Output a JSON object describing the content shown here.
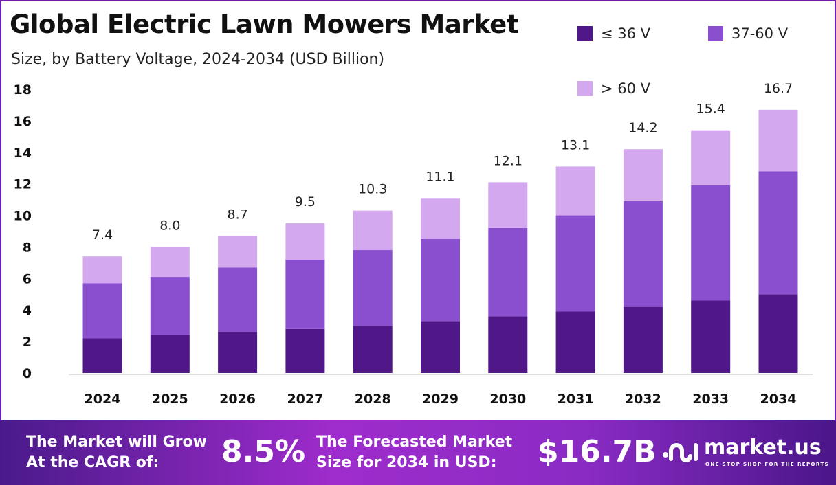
{
  "chart_data": {
    "type": "bar",
    "stacked": true,
    "title": "Global Electric Lawn Mowers Market",
    "subtitle": "Size, by Battery Voltage, 2024-2034 (USD Billion)",
    "categories": [
      "2024",
      "2025",
      "2026",
      "2027",
      "2028",
      "2029",
      "2030",
      "2031",
      "2032",
      "2033",
      "2034"
    ],
    "series": [
      {
        "name": "≤ 36 V",
        "color": "#4f1787",
        "values": [
          2.2,
          2.4,
          2.6,
          2.8,
          3.0,
          3.3,
          3.6,
          3.9,
          4.2,
          4.6,
          5.0
        ]
      },
      {
        "name": "37-60 V",
        "color": "#8a4fcf",
        "values": [
          3.5,
          3.7,
          4.1,
          4.4,
          4.8,
          5.2,
          5.6,
          6.1,
          6.7,
          7.3,
          7.8
        ]
      },
      {
        "name": "> 60 V",
        "color": "#d4a8ee",
        "values": [
          1.7,
          1.9,
          2.0,
          2.3,
          2.5,
          2.6,
          2.9,
          3.1,
          3.3,
          3.5,
          3.9
        ]
      }
    ],
    "totals": [
      "7.4",
      "8.0",
      "8.7",
      "9.5",
      "10.3",
      "11.1",
      "12.1",
      "13.1",
      "14.2",
      "15.4",
      "16.7"
    ],
    "yticks": [
      "0",
      "2",
      "4",
      "6",
      "8",
      "10",
      "12",
      "14",
      "16",
      "18"
    ],
    "ylim": [
      0,
      18
    ],
    "grid": false,
    "legend": "top-right"
  },
  "footer": {
    "cagr_text_1": "The Market will Grow",
    "cagr_text_2": "At the CAGR of:",
    "cagr_value": "8.5%",
    "forecast_text_1": "The Forecasted Market",
    "forecast_text_2": "Size for 2034 in USD:",
    "forecast_value": "$16.7B",
    "logo_name": "market.us",
    "logo_tagline": "ONE STOP SHOP FOR THE REPORTS"
  }
}
